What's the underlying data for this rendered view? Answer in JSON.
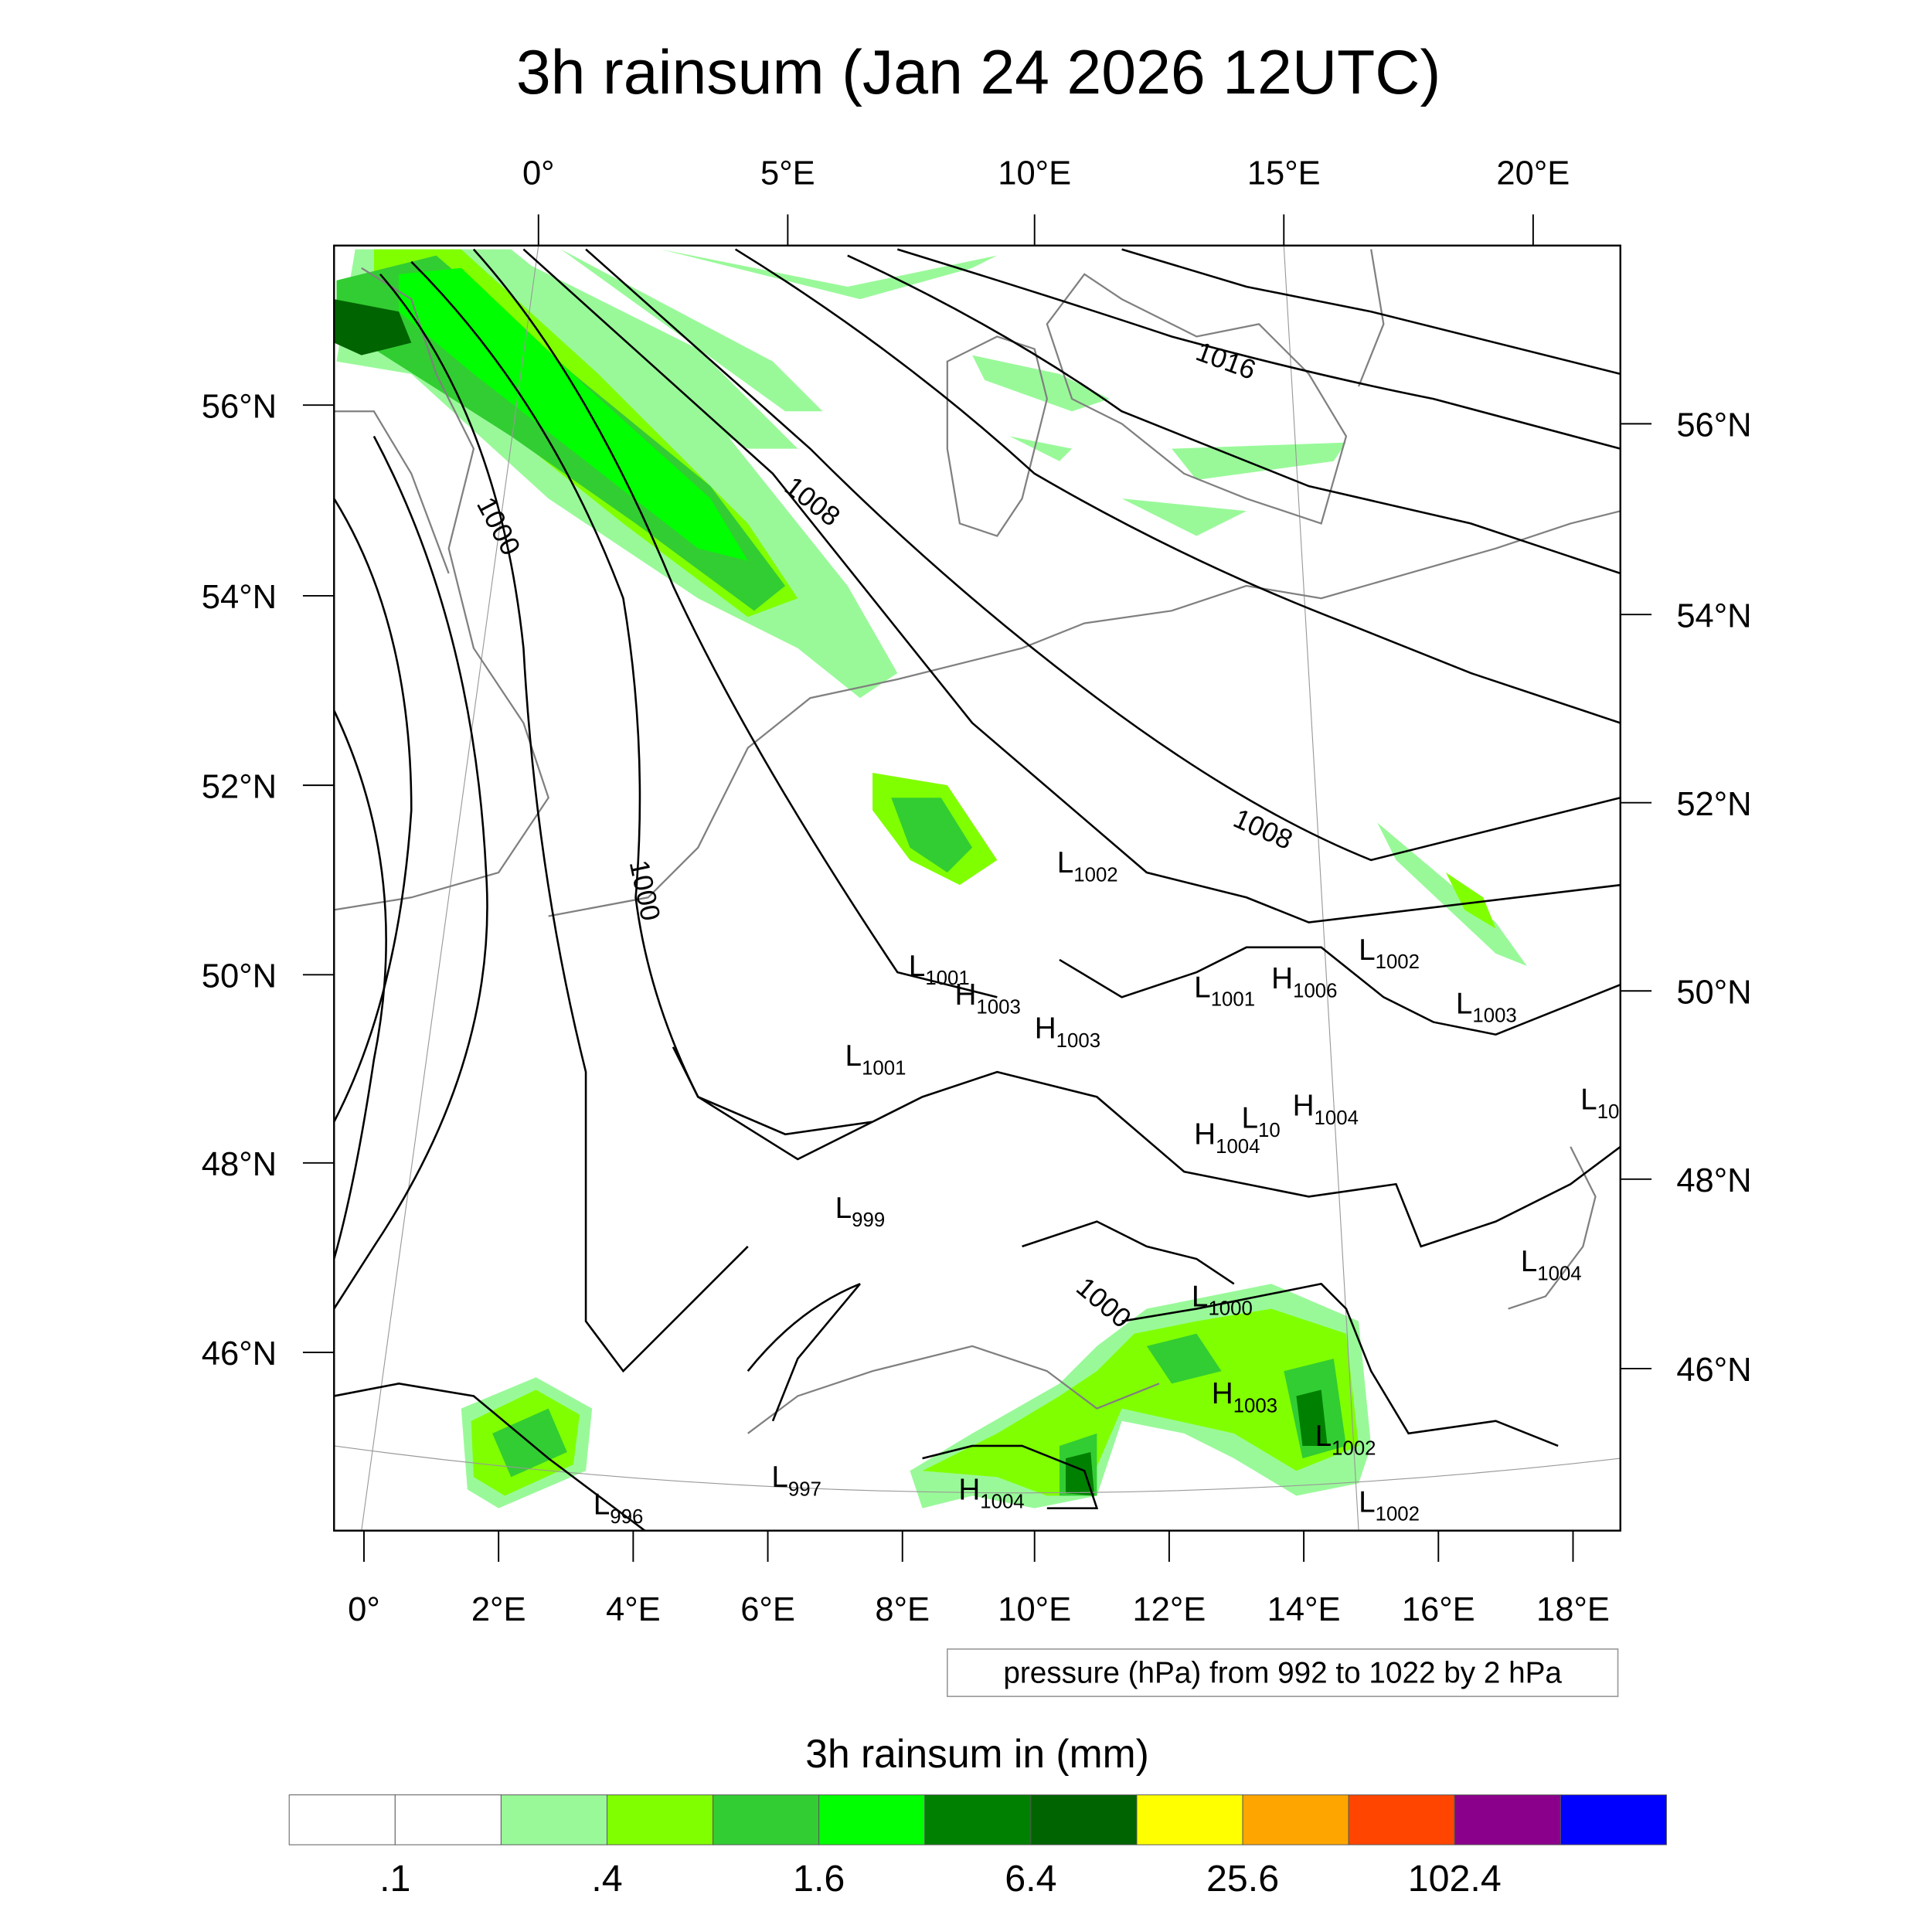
{
  "title": "3h rainsum (Jan 24 2026 12UTC)",
  "axes": {
    "top_lon_ticks": [
      "0°",
      "5°E",
      "10°E",
      "15°E",
      "20°E"
    ],
    "bottom_lon_ticks": [
      "0°",
      "2°E",
      "4°E",
      "6°E",
      "8°E",
      "10°E",
      "12°E",
      "14°E",
      "16°E",
      "18°E"
    ],
    "left_lat_ticks": [
      "56°N",
      "54°N",
      "52°N",
      "50°N",
      "48°N",
      "46°N"
    ],
    "right_lat_ticks": [
      "56°N",
      "54°N",
      "52°N",
      "50°N",
      "48°N",
      "46°N"
    ]
  },
  "isobar_labels": [
    "1016",
    "1008",
    "1000",
    "1008",
    "1000",
    "1000"
  ],
  "pressure_centers": [
    {
      "type": "L",
      "value": "1002"
    },
    {
      "type": "L",
      "value": "1001"
    },
    {
      "type": "H",
      "value": "1003"
    },
    {
      "type": "H",
      "value": "1003"
    },
    {
      "type": "L",
      "value": "1001"
    },
    {
      "type": "L",
      "value": "1001"
    },
    {
      "type": "H",
      "value": "1006"
    },
    {
      "type": "L",
      "value": "1002"
    },
    {
      "type": "L",
      "value": "1003"
    },
    {
      "type": "L",
      "value": "10"
    },
    {
      "type": "L",
      "value": "10"
    },
    {
      "type": "H",
      "value": "1004"
    },
    {
      "type": "H",
      "value": "1004"
    },
    {
      "type": "L",
      "value": "999"
    },
    {
      "type": "L",
      "value": "1004"
    },
    {
      "type": "L",
      "value": "1000"
    },
    {
      "type": "H",
      "value": "1003"
    },
    {
      "type": "L",
      "value": "1002"
    },
    {
      "type": "L",
      "value": "1002"
    },
    {
      "type": "H",
      "value": "1004"
    },
    {
      "type": "L",
      "value": "997"
    },
    {
      "type": "L",
      "value": "996"
    }
  ],
  "contour_note": "pressure (hPa) from 992 to 1022 by 2 hPa",
  "colorbar": {
    "title": "3h rainsum in (mm)",
    "colors": [
      "#ffffff",
      "#ffffff",
      "#99f999",
      "#80ff00",
      "#32cd32",
      "#00ff00",
      "#008000",
      "#006400",
      "#ffff00",
      "#ffa500",
      "#ff4500",
      "#8b008b",
      "#0000ff"
    ],
    "labels": [
      ".1",
      ".4",
      "1.6",
      "6.4",
      "25.6",
      "102.4"
    ]
  }
}
